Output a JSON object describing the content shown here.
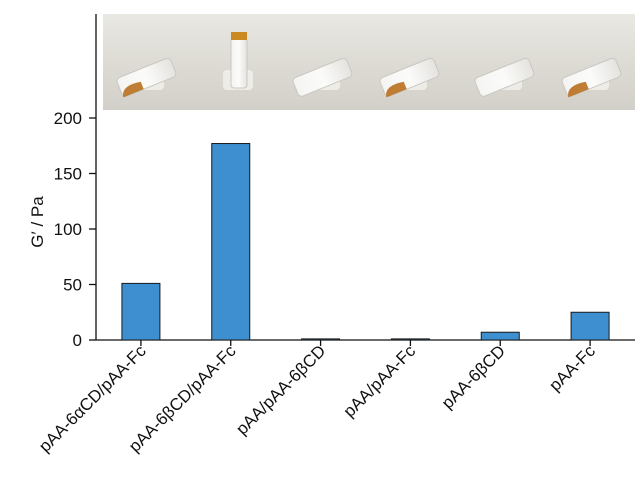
{
  "chart_data": {
    "type": "bar",
    "title": "",
    "xlabel": "",
    "ylabel": "G′ / Pa",
    "ylim": [
      0,
      200
    ],
    "yticks": [
      0,
      50,
      100,
      150,
      200
    ],
    "categories": [
      "pAA-6αCD/pAA-Fc",
      "pAA-6βCD/pAA-Fc",
      "pAA/pAA-6βCD",
      "pAA/pAA-Fc",
      "pAA-6βCD",
      "pAA-Fc"
    ],
    "values": [
      51,
      177,
      1,
      1,
      7,
      25
    ],
    "bar_color": "#3e8fd0",
    "bar_edge_color": "#1a1a1a",
    "grid": false,
    "inset_photo": {
      "description_name": "vial-photo",
      "vials": [
        {
          "state": "tilted",
          "fill": "amber"
        },
        {
          "state": "upright",
          "fill": "amber"
        },
        {
          "state": "tilted",
          "fill": "clear"
        },
        {
          "state": "tilted",
          "fill": "amber"
        },
        {
          "state": "tilted",
          "fill": "clear"
        },
        {
          "state": "tilted",
          "fill": "amber"
        }
      ]
    }
  }
}
